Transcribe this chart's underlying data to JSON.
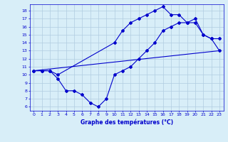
{
  "line1_x": [
    0,
    1,
    2,
    3,
    10,
    11,
    12,
    13,
    14,
    15,
    16,
    17,
    18,
    19,
    20,
    21,
    22,
    23
  ],
  "line1_y": [
    10.5,
    10.5,
    10.5,
    10.0,
    14.0,
    15.5,
    16.5,
    17.0,
    17.5,
    18.0,
    18.5,
    17.5,
    17.5,
    16.5,
    17.0,
    15.0,
    14.5,
    14.5
  ],
  "line2_x": [
    0,
    1,
    2,
    3,
    4,
    5,
    6,
    7,
    8,
    9,
    10,
    11,
    12,
    13,
    14,
    15,
    16,
    17,
    18,
    19,
    20,
    21,
    22,
    23
  ],
  "line2_y": [
    10.5,
    10.5,
    10.5,
    9.5,
    8.0,
    8.0,
    7.5,
    6.5,
    6.0,
    7.0,
    10.0,
    10.5,
    11.0,
    12.0,
    13.0,
    14.0,
    15.5,
    16.0,
    16.5,
    16.5,
    16.5,
    15.0,
    14.5,
    13.0
  ],
  "line3_x": [
    0,
    23
  ],
  "line3_y": [
    10.5,
    13.0
  ],
  "color": "#0000cc",
  "bg_color": "#d8eef8",
  "grid_color": "#b0cce0",
  "xlabel": "Graphe des températures (°C)",
  "xlim": [
    -0.5,
    23.5
  ],
  "ylim": [
    5.5,
    18.8
  ],
  "yticks": [
    6,
    7,
    8,
    9,
    10,
    11,
    12,
    13,
    14,
    15,
    16,
    17,
    18
  ],
  "xticks": [
    0,
    1,
    2,
    3,
    4,
    5,
    6,
    7,
    8,
    9,
    10,
    11,
    12,
    13,
    14,
    15,
    16,
    17,
    18,
    19,
    20,
    21,
    22,
    23
  ],
  "marker": "D",
  "markersize": 2,
  "linewidth": 0.8
}
